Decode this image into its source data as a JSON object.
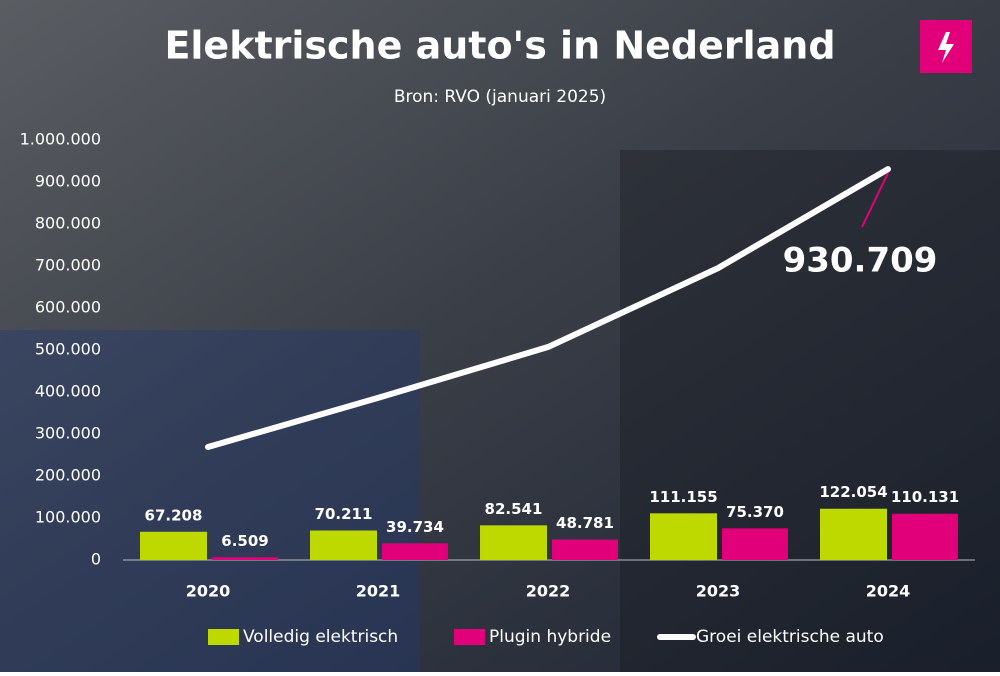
{
  "chart_data": {
    "type": "bar",
    "title": "Elektrische auto's in Nederland",
    "subtitle": "Bron: RVO (januari 2025)",
    "categories": [
      "2020",
      "2021",
      "2022",
      "2023",
      "2024"
    ],
    "series": [
      {
        "name": "Volledig elektrisch",
        "color": "#bdd900",
        "values": [
          67208,
          70211,
          82541,
          111155,
          122054
        ],
        "value_labels": [
          "67.208",
          "70.211",
          "82.541",
          "111.155",
          "122.054"
        ]
      },
      {
        "name": "Plugin hybride",
        "color": "#e2007a",
        "values": [
          6509,
          39734,
          48781,
          75370,
          110131
        ],
        "value_labels": [
          "6.509",
          "39.734",
          "48.781",
          "75.370",
          "110.131"
        ]
      },
      {
        "name": "Groei elektrische auto",
        "type": "line",
        "color": "#ffffff",
        "values": [
          269000,
          386000,
          507000,
          695000,
          930709
        ],
        "value_labels": [
          null,
          null,
          null,
          null,
          "930.709"
        ]
      }
    ],
    "ylim": [
      0,
      1000000
    ],
    "yticks": [
      0,
      {
        "value": 100000,
        "label": "100.000"
      },
      {
        "value": 200000,
        "label": "200.000"
      },
      {
        "value": 300000,
        "label": "300.000"
      },
      {
        "value": 400000,
        "label": "400.000"
      },
      {
        "value": 500000,
        "label": "500.000"
      },
      {
        "value": 600000,
        "label": "600.000"
      },
      {
        "value": 700000,
        "label": "700.000"
      },
      {
        "value": 800000,
        "label": "800.000"
      },
      {
        "value": 900000,
        "label": "900.000"
      },
      {
        "value": 1000000,
        "label": "1.000.000"
      }
    ],
    "grid": false
  }
}
